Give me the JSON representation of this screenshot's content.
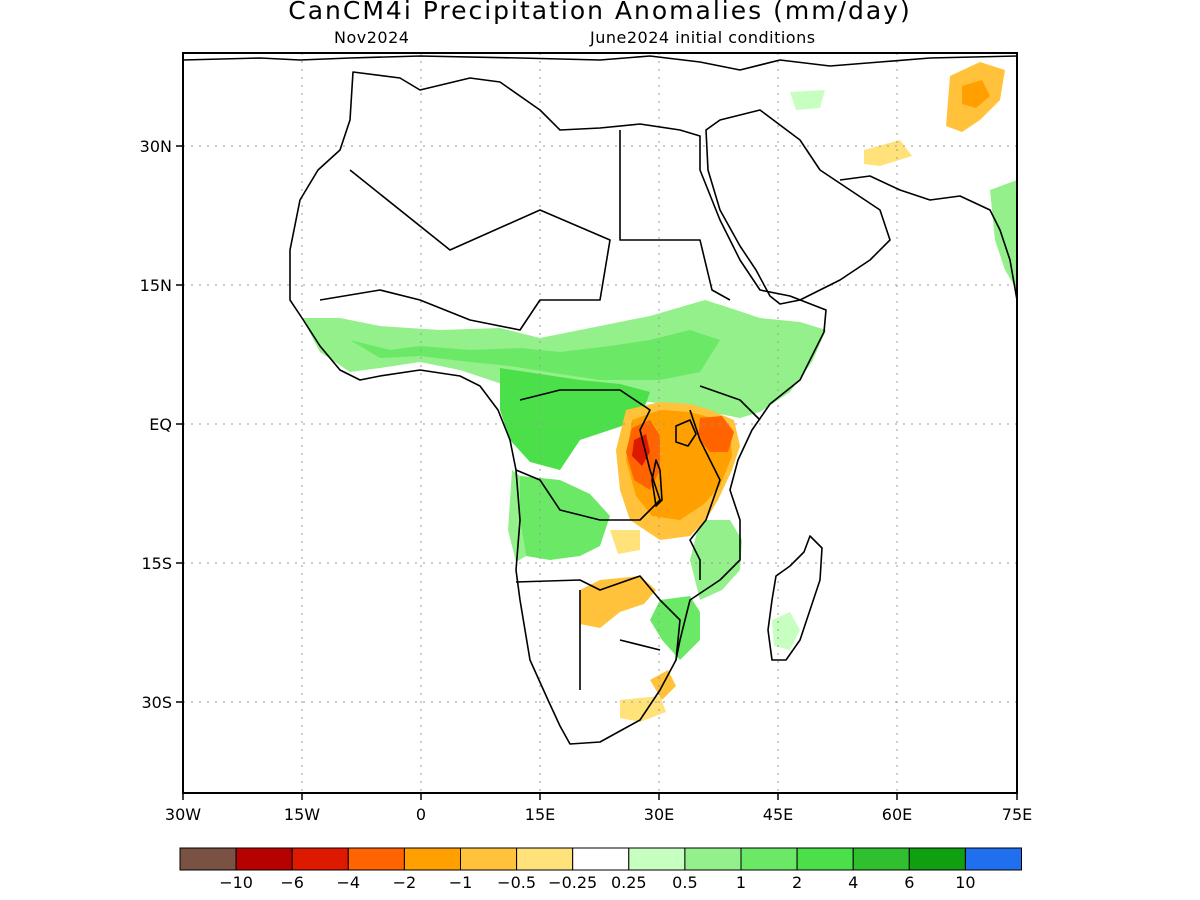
{
  "title": "CanCM4i Precipitation Anomalies (mm/day)",
  "target_month": "Nov2024",
  "initial_conditions": "June2024 initial conditions",
  "map": {
    "lon_range": [
      -30,
      75
    ],
    "lat_range": [
      -40,
      40
    ],
    "lon_ticks": [
      "30W",
      "15W",
      "0",
      "15E",
      "30E",
      "45E",
      "60E",
      "75E"
    ],
    "lat_ticks": [
      "30N",
      "15N",
      "EQ",
      "15S",
      "30S"
    ],
    "grid": "dotted"
  },
  "legend": {
    "colors": [
      "#7a5243",
      "#b70000",
      "#dd1a00",
      "#ff6400",
      "#ff9f00",
      "#ffc23a",
      "#ffe27a",
      "#ffffff",
      "#c6ffc0",
      "#93f08b",
      "#6be866",
      "#4bdf4a",
      "#2fbf2f",
      "#109f10",
      "#1f6fef"
    ],
    "labels": [
      "−10",
      "−6",
      "−4",
      "−2",
      "−1",
      "−0.5",
      "−0.25",
      "0.25",
      "0.5",
      "1",
      "2",
      "4",
      "6",
      "10"
    ]
  }
}
